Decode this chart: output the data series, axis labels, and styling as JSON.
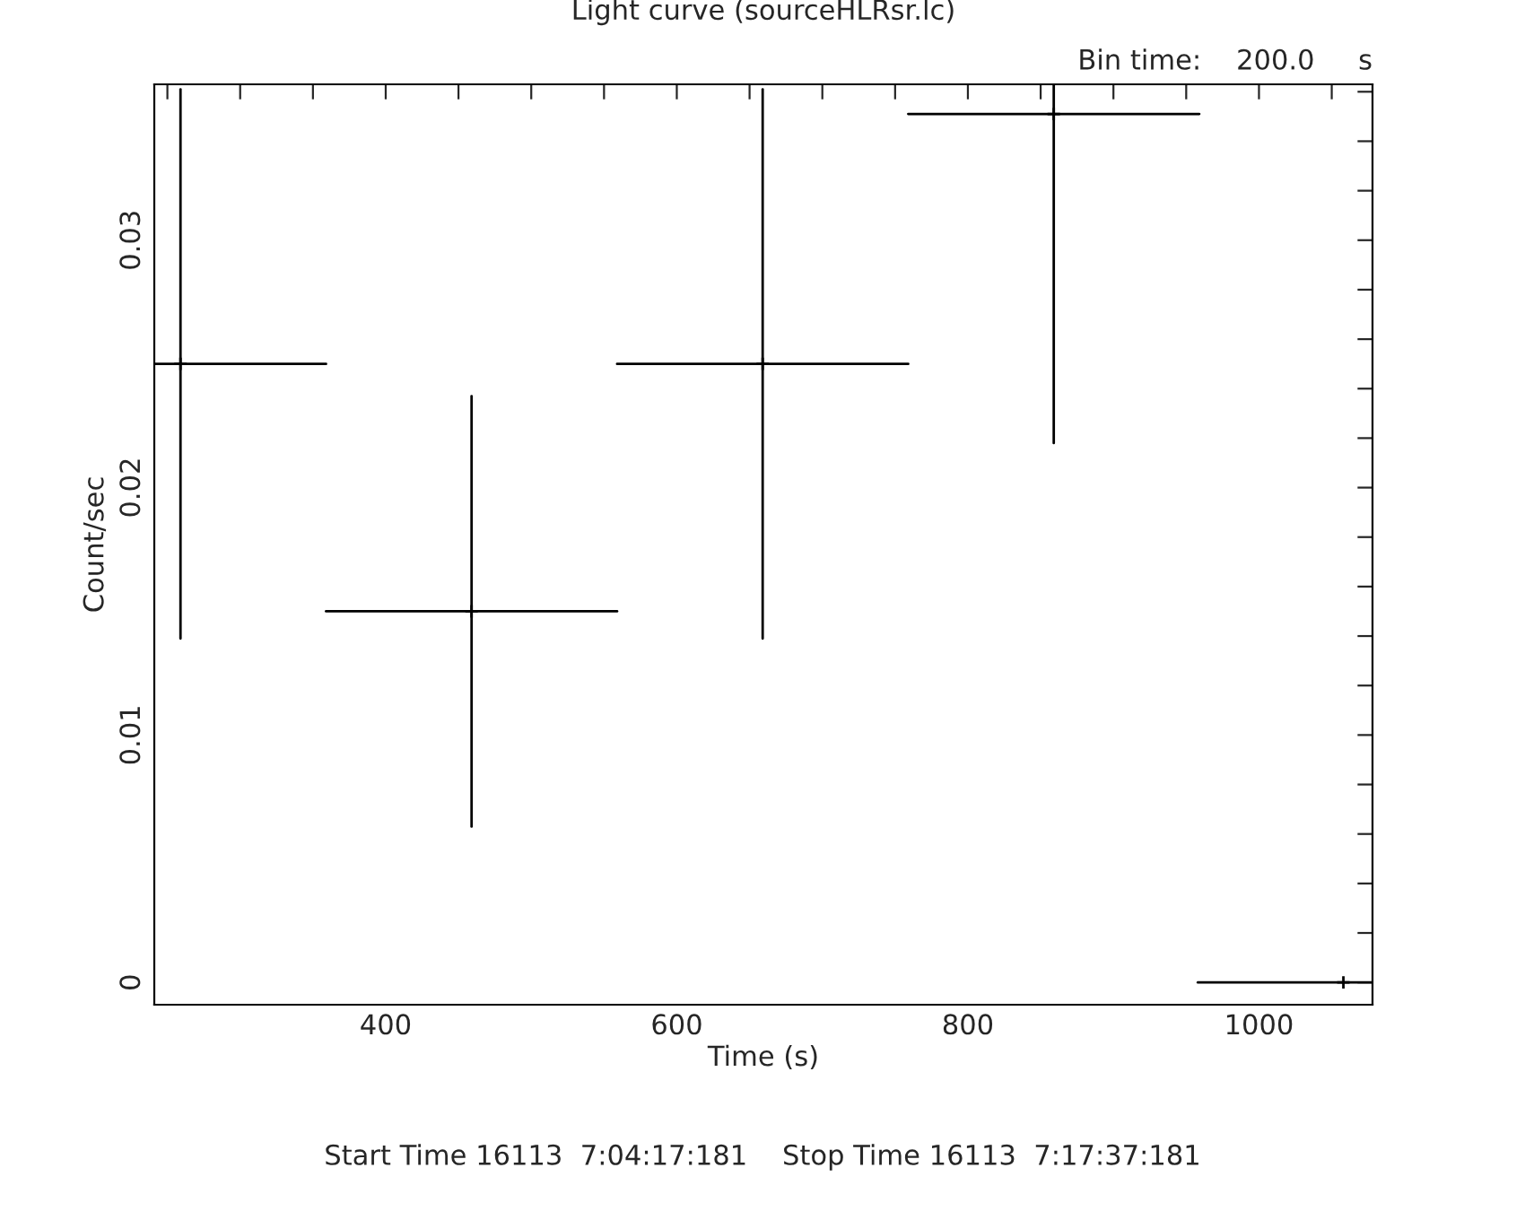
{
  "chart_data": {
    "type": "scatter",
    "title": "Light curve (sourceHLRsr.lc)",
    "subtitle": "Bin time:    200.0     s",
    "xlabel": "Time (s)",
    "ylabel": "Count/sec",
    "x": [
      259,
      459,
      659,
      859,
      1058
    ],
    "values": [
      0.025,
      0.015,
      0.025,
      0.0351,
      0
    ],
    "errors": [
      0.0111,
      0.0087,
      0.0111,
      [
        0.0218,
        0.0363
      ],
      0
    ],
    "xerrors": [
      100,
      100,
      100,
      100,
      100
    ],
    "color": "#000000",
    "marker": "cross",
    "xlim": [
      241,
      1078
    ],
    "ylim": [
      -0.0009,
      0.0363
    ],
    "xticks": [
      {
        "value": 250,
        "label": null
      },
      {
        "value": 300,
        "label": null
      },
      {
        "value": 350,
        "label": null
      },
      400,
      {
        "value": 450,
        "label": null
      },
      {
        "value": 500,
        "label": null
      },
      {
        "value": 550,
        "label": null
      },
      600,
      {
        "value": 650,
        "label": null
      },
      {
        "value": 700,
        "label": null
      },
      {
        "value": 750,
        "label": null
      },
      800,
      {
        "value": 850,
        "label": null
      },
      {
        "value": 900,
        "label": null
      },
      {
        "value": 950,
        "label": null
      },
      1000,
      {
        "value": 1050,
        "label": null
      }
    ],
    "yticks": [
      0,
      {
        "value": 0.002,
        "label": null
      },
      {
        "value": 0.004,
        "label": null
      },
      {
        "value": 0.006,
        "label": null
      },
      {
        "value": 0.008,
        "label": null
      },
      0.01,
      {
        "value": 0.012,
        "label": null
      },
      {
        "value": 0.014,
        "label": null
      },
      {
        "value": 0.016,
        "label": null
      },
      {
        "value": 0.018,
        "label": null
      },
      0.02,
      {
        "value": 0.022,
        "label": null
      },
      {
        "value": 0.024,
        "label": null
      },
      {
        "value": 0.026,
        "label": null
      },
      {
        "value": 0.028,
        "label": null
      },
      0.03,
      {
        "value": 0.032,
        "label": null
      },
      {
        "value": 0.034,
        "label": null
      },
      {
        "value": 0.036,
        "label": null
      }
    ],
    "grid": false,
    "legend": false,
    "annotations": [
      "Start Time 16113  7:04:17:181    Stop Time 16113  7:17:37:181"
    ]
  }
}
